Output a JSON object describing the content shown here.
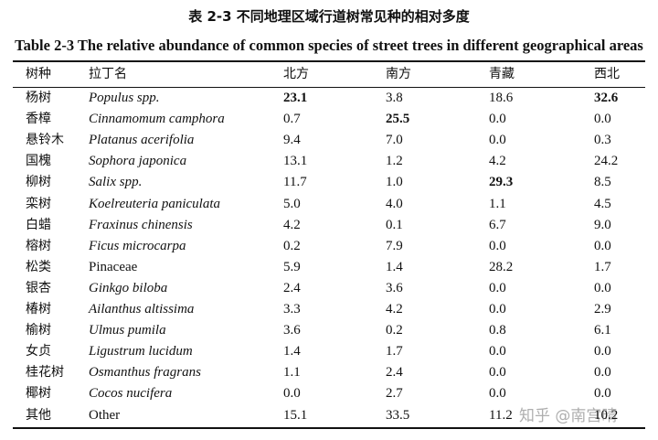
{
  "title": "表 2-3 不同地理区域行道树常见种的相对多度",
  "subtitle": "Table 2-3 The relative abundance of common species of street trees in different geographical areas",
  "table": {
    "columns": [
      "树种",
      "拉丁名",
      "北方",
      "南方",
      "青藏",
      "西北"
    ],
    "rows": [
      [
        "杨树",
        "Populus spp.",
        "23.1",
        "3.8",
        "18.6",
        "32.6"
      ],
      [
        "香樟",
        "Cinnamomum camphora",
        "0.7",
        "25.5",
        "0.0",
        "0.0"
      ],
      [
        "悬铃木",
        "Platanus acerifolia",
        "9.4",
        "7.0",
        "0.0",
        "0.3"
      ],
      [
        "国槐",
        "Sophora japonica",
        "13.1",
        "1.2",
        "4.2",
        "24.2"
      ],
      [
        "柳树",
        "Salix spp.",
        "11.7",
        "1.0",
        "29.3",
        "8.5"
      ],
      [
        "栾树",
        "Koelreuteria paniculata",
        "5.0",
        "4.0",
        "1.1",
        "4.5"
      ],
      [
        "白蜡",
        "Fraxinus chinensis",
        "4.2",
        "0.1",
        "6.7",
        "9.0"
      ],
      [
        "榕树",
        "Ficus microcarpa",
        "0.2",
        "7.9",
        "0.0",
        "0.0"
      ],
      [
        "松类",
        "Pinaceae",
        "5.9",
        "1.4",
        "28.2",
        "1.7"
      ],
      [
        "银杏",
        "Ginkgo biloba",
        "2.4",
        "3.6",
        "0.0",
        "0.0"
      ],
      [
        "椿树",
        "Ailanthus altissima",
        "3.3",
        "4.2",
        "0.0",
        "2.9"
      ],
      [
        "榆树",
        "Ulmus pumila",
        "3.6",
        "0.2",
        "0.8",
        "6.1"
      ],
      [
        "女贞",
        "Ligustrum lucidum",
        "1.4",
        "1.7",
        "0.0",
        "0.0"
      ],
      [
        "桂花树",
        "Osmanthus fragrans",
        "1.1",
        "2.4",
        "0.0",
        "0.0"
      ],
      [
        "椰树",
        "Cocos nucifera",
        "0.0",
        "2.7",
        "0.0",
        "0.0"
      ],
      [
        "其他",
        "Other",
        "15.1",
        "33.5",
        "11.2",
        "10.2"
      ]
    ]
  },
  "watermark": "知乎 @南宫晴"
}
